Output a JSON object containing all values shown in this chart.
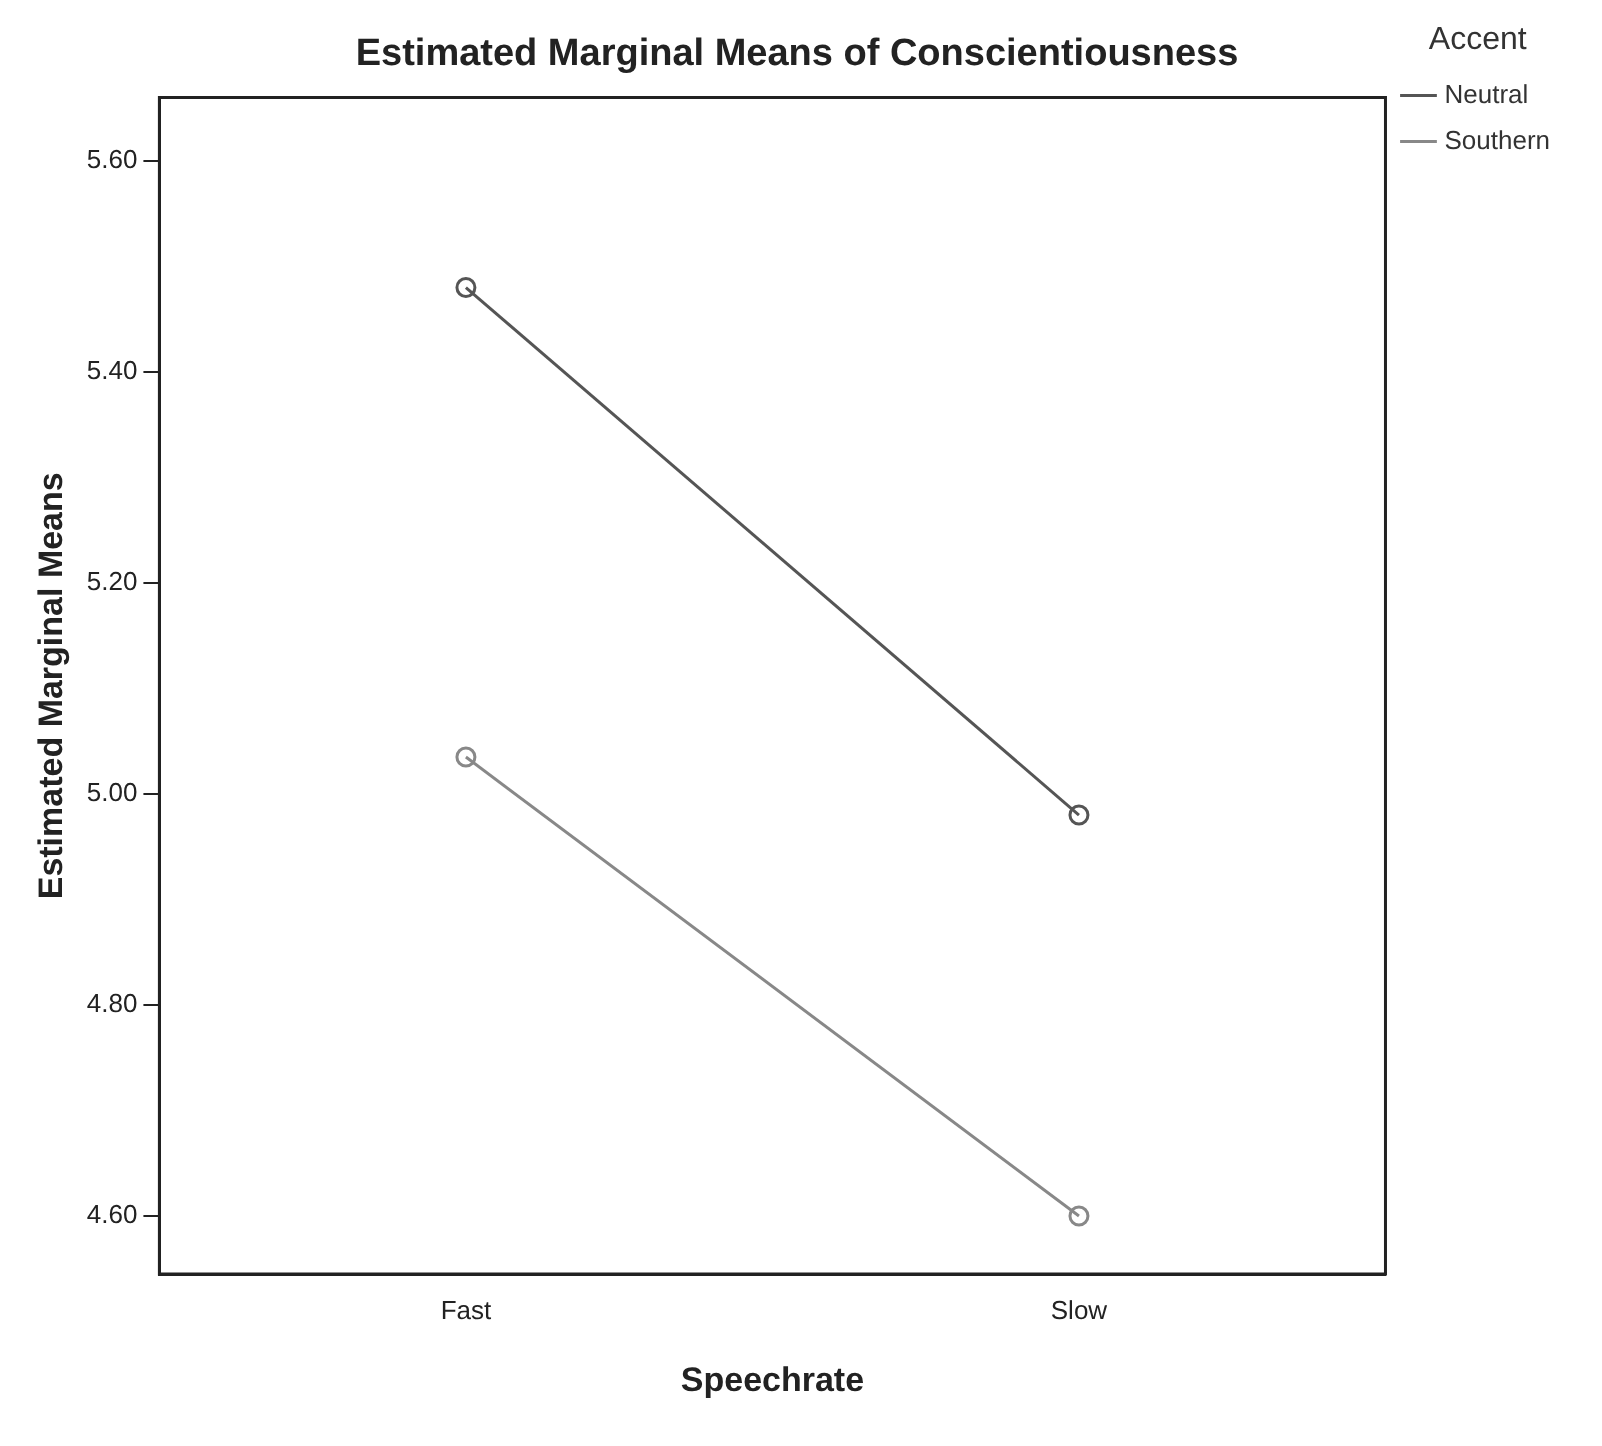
{
  "chart_data": {
    "type": "line",
    "title": "Estimated Marginal Means of Conscientiousness",
    "xlabel": "Speechrate",
    "ylabel": "Estimated Marginal Means",
    "legend_title": "Accent",
    "categories": [
      "Fast",
      "Slow"
    ],
    "series": [
      {
        "name": "Neutral",
        "color": "#555555",
        "values": [
          5.48,
          4.98
        ]
      },
      {
        "name": "Southern",
        "color": "#888888",
        "values": [
          5.035,
          4.6
        ]
      }
    ],
    "ylim": [
      4.545,
      5.66
    ],
    "yticks": [
      {
        "value": 4.6,
        "label": "4.60"
      },
      {
        "value": 4.8,
        "label": "4.80"
      },
      {
        "value": 5.0,
        "label": "5.00"
      },
      {
        "value": 5.2,
        "label": "5.20"
      },
      {
        "value": 5.4,
        "label": "5.40"
      },
      {
        "value": 5.6,
        "label": "5.60"
      }
    ],
    "grid": false,
    "legend": "top right",
    "marker": "circle",
    "line_style": "solid"
  }
}
